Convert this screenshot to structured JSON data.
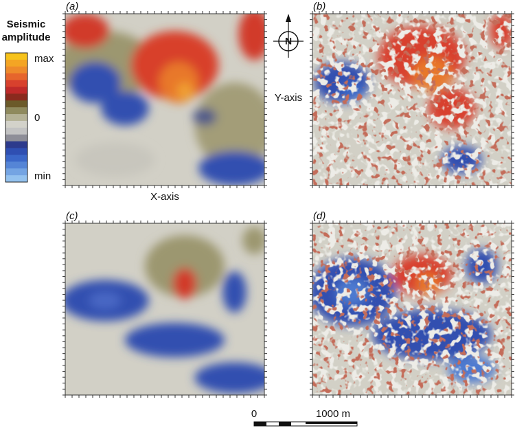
{
  "figure": {
    "colorbar": {
      "title_lines": [
        "Seismic",
        "amplitude"
      ],
      "labels": [
        "max",
        "0",
        "min"
      ]
    },
    "panels": [
      {
        "label": "(a)"
      },
      {
        "label": "(b)"
      },
      {
        "label": "(c)"
      },
      {
        "label": "(d)"
      }
    ],
    "x_axis": "X-axis",
    "y_axis": "Y-axis",
    "north": "N",
    "scale_bar": {
      "start": "0",
      "end": "1000 m"
    }
  }
}
